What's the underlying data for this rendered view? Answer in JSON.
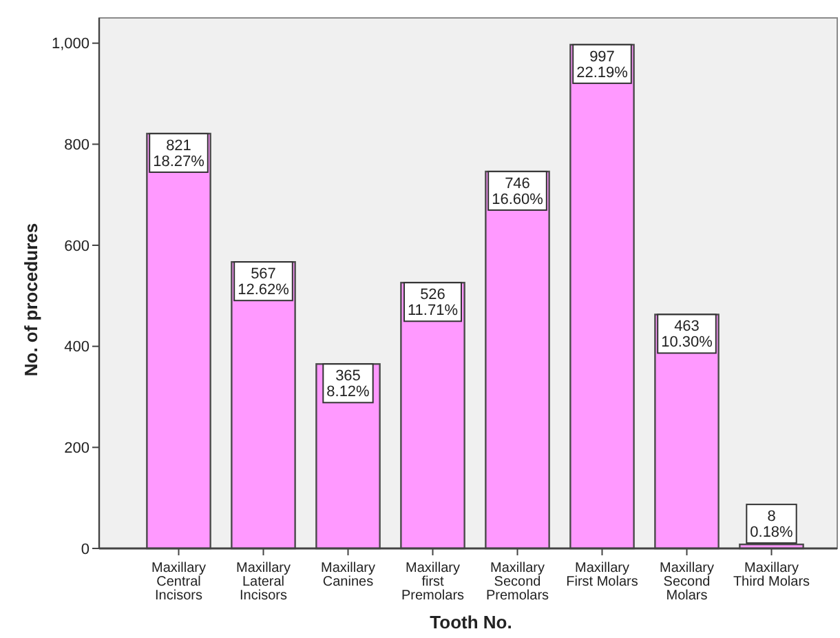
{
  "chart_data": {
    "type": "bar",
    "xlabel": "Tooth No.",
    "ylabel": "No. of procedures",
    "categories": [
      "Maxillary Central Incisors",
      "Maxillary Lateral Incisors",
      "Maxillary Canines",
      "Maxillary first Premolars",
      "Maxillary Second Premolars",
      "Maxillary First Molars",
      "Maxillary Second Molars",
      "Maxillary Third Molars"
    ],
    "values": [
      821,
      567,
      365,
      526,
      746,
      997,
      463,
      8
    ],
    "value_labels": [
      "821\n18.27%",
      "567\n12.62%",
      "365\n8.12%",
      "526\n11.71%",
      "746\n16.60%",
      "997\n22.19%",
      "463\n10.30%",
      "8\n0.18%"
    ],
    "color": "#ff99ff",
    "ylim": [
      0,
      1050
    ],
    "yticks": [
      0,
      200,
      400,
      600,
      800,
      {
        "value": 1000,
        "label": "1,000"
      }
    ],
    "grid": false
  }
}
